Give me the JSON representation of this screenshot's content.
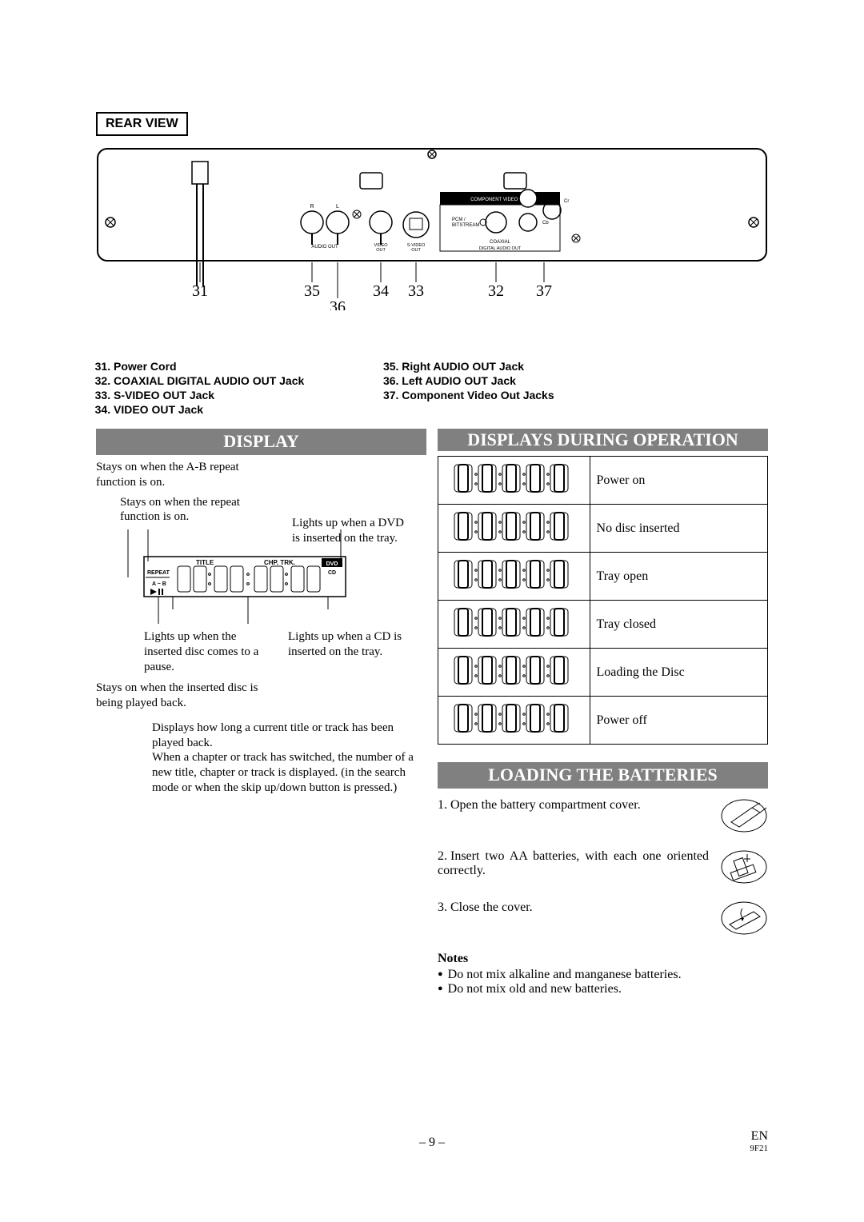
{
  "rear_view": {
    "label": "REAR VIEW",
    "callouts": [
      "31",
      "35",
      "34",
      "33",
      "32",
      "37",
      "36"
    ],
    "jack_labels": {
      "R": "R",
      "L": "L",
      "audio_out": "AUDIO OUT",
      "video_out": "VIDEO OUT",
      "svideo": "S-VIDEO OUT",
      "pcm": "PCM / BITSTREAM",
      "coax": "COAXIAL",
      "digi": "DIGITAL AUDIO OUT",
      "comp": "COMPONENT VIDEO OUT",
      "Y": "Y",
      "Cr": "Cr",
      "Cb": "Cb"
    }
  },
  "refs_left": [
    {
      "n": "31",
      "t": "Power Cord"
    },
    {
      "n": "32",
      "t": "COAXIAL DIGITAL AUDIO OUT Jack"
    },
    {
      "n": "33",
      "t": "S-VIDEO OUT Jack"
    },
    {
      "n": "34",
      "t": "VIDEO OUT Jack"
    }
  ],
  "refs_right": [
    {
      "n": "35",
      "t": "Right AUDIO OUT Jack"
    },
    {
      "n": "36",
      "t": "Left AUDIO OUT Jack"
    },
    {
      "n": "37",
      "t": "Component Video Out Jacks"
    }
  ],
  "display": {
    "heading": "DISPLAY",
    "ab_text": "Stays on when the A-B repeat function is on.",
    "repeat_text": "Stays on when the repeat function is on.",
    "dvd_text": "Lights up when a DVD is inserted on the tray.",
    "pause_text": "Lights up when the inserted disc comes to a pause.",
    "cd_text": "Lights up when a CD is inserted on the tray.",
    "playback_text": "Stays on when the inserted disc is being played back.",
    "time_text": "Displays how long a current title or track has been played back.\nWhen a chapter or track has switched, the number of a new title, chapter or track is displayed. (in the search mode or when the skip up/down button is pressed.)",
    "panel_labels": {
      "title": "TITLE",
      "chp": "CHP. TRK.",
      "repeat": "REPEAT",
      "ab": "A ~ B",
      "dvd": "DVD",
      "cd": "CD"
    }
  },
  "displays_during": {
    "heading": "DISPLAYS DURING OPERATION",
    "rows": [
      {
        "seg": "P  on",
        "label": "Power on"
      },
      {
        "seg": "- - - -",
        "label": "No disc inserted"
      },
      {
        "seg": "OPEn",
        "label": "Tray open"
      },
      {
        "seg": "CLOSE",
        "label": "Tray closed"
      },
      {
        "seg": "LoAd",
        "label": "Loading the Disc"
      },
      {
        "seg": "P oFF",
        "label": "Power off"
      }
    ]
  },
  "batteries": {
    "heading": "LOADING THE BATTERIES",
    "steps": [
      "Open the battery compartment cover.",
      "Insert two AA batteries, with each one oriented correctly.",
      "Close the cover."
    ],
    "notes_head": "Notes",
    "notes": [
      "Do not mix alkaline and manganese batteries.",
      "Do not mix old and new batteries."
    ]
  },
  "footer": {
    "page": "– 9 –",
    "lang": "EN",
    "code": "9F21"
  },
  "colors": {
    "bar_bg": "#808080",
    "bar_fg": "#ffffff"
  }
}
